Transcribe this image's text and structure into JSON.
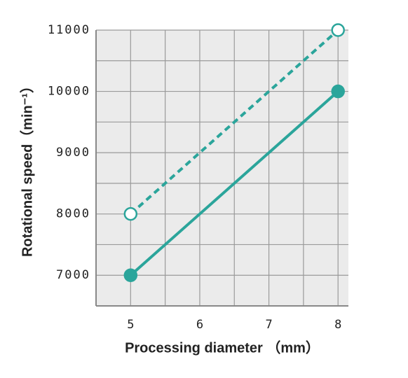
{
  "chart_data": {
    "type": "line",
    "x_label": "Processing diameter （mm）",
    "y_label": "Rotational speed（min⁻¹）",
    "x": [
      5,
      8
    ],
    "series": [
      {
        "color": "#2ba59b",
        "dashed": false,
        "marker": "filled",
        "values": [
          7000,
          10000
        ]
      },
      {
        "color": "#2ba59b",
        "dashed": true,
        "marker": "open",
        "values": [
          8000,
          11000
        ]
      }
    ],
    "xlim": [
      4.5,
      8.15
    ],
    "xticks": [
      5,
      6,
      7,
      8
    ],
    "ylim": [
      6500,
      11000
    ],
    "yticks": [
      7000,
      8000,
      9000,
      10000,
      11000
    ],
    "grid": true
  }
}
